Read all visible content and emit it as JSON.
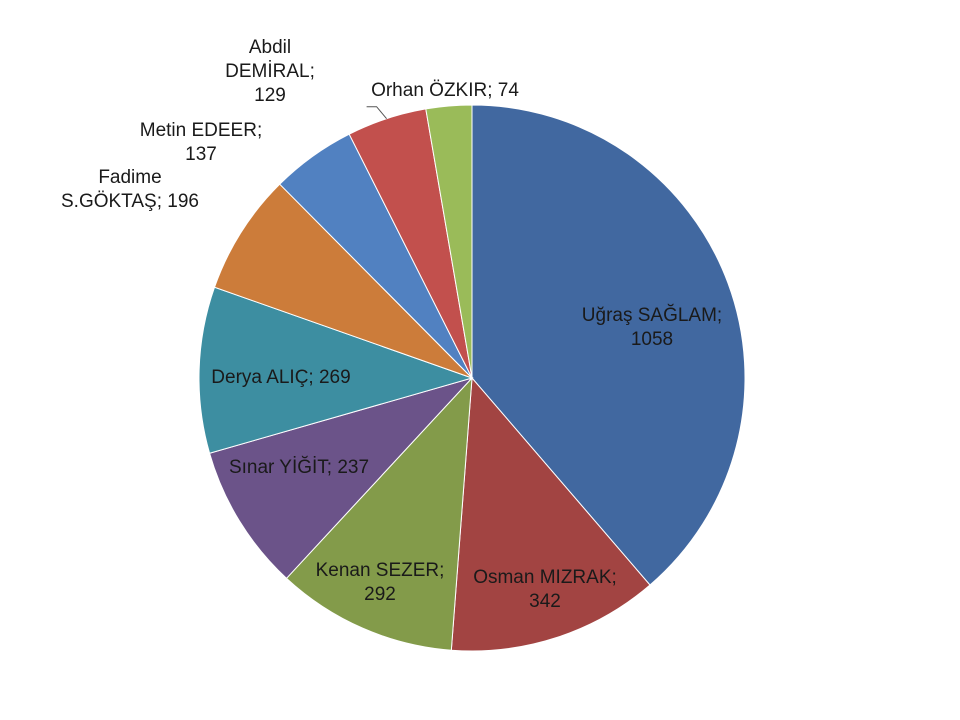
{
  "chart_data": {
    "type": "pie",
    "title": "",
    "slices": [
      {
        "name": "Uğraş SAĞLAM",
        "value": 1058,
        "color": "#4168A0",
        "lines": [
          "Uğraş SAĞLAM;",
          "1058"
        ]
      },
      {
        "name": "Osman MIZRAK",
        "value": 342,
        "color": "#A24442",
        "lines": [
          "Osman MIZRAK;",
          "342"
        ]
      },
      {
        "name": "Kenan SEZER",
        "value": 292,
        "color": "#839B4A",
        "lines": [
          "Kenan SEZER;",
          "292"
        ]
      },
      {
        "name": "Sınar YİĞİT",
        "value": 237,
        "color": "#6B5389",
        "lines": [
          "Sınar YİĞİT; 237"
        ]
      },
      {
        "name": "Derya ALIÇ",
        "value": 269,
        "color": "#3D8EA1",
        "lines": [
          "Derya ALIÇ; 269"
        ]
      },
      {
        "name": "Fadime S.GÖKTAŞ",
        "value": 196,
        "color": "#CC7C3A",
        "lines": [
          "Fadime",
          "S.GÖKTAŞ; 196"
        ]
      },
      {
        "name": "Metin EDEER",
        "value": 137,
        "color": "#5181C1",
        "lines": [
          "Metin EDEER;",
          "137"
        ]
      },
      {
        "name": "Abdil DEMİRAL",
        "value": 129,
        "color": "#C2504D",
        "lines": [
          "Abdil",
          "DEMİRAL;",
          "129"
        ]
      },
      {
        "name": "Orhan ÖZKIR",
        "value": 74,
        "color": "#9ABB59",
        "lines": [
          "Orhan ÖZKIR; 74"
        ]
      }
    ],
    "start_angle_deg": 0,
    "direction": "clockwise",
    "legend": "none",
    "data_labels": "name; value"
  }
}
